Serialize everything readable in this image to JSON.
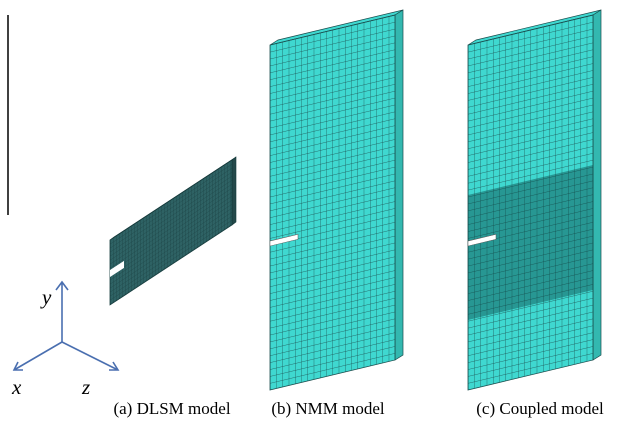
{
  "axes": {
    "x": "x",
    "y": "y",
    "z": "z"
  },
  "captions": [
    "(a) DLSM model",
    "(b) NMM model",
    "(c) Coupled model"
  ]
}
